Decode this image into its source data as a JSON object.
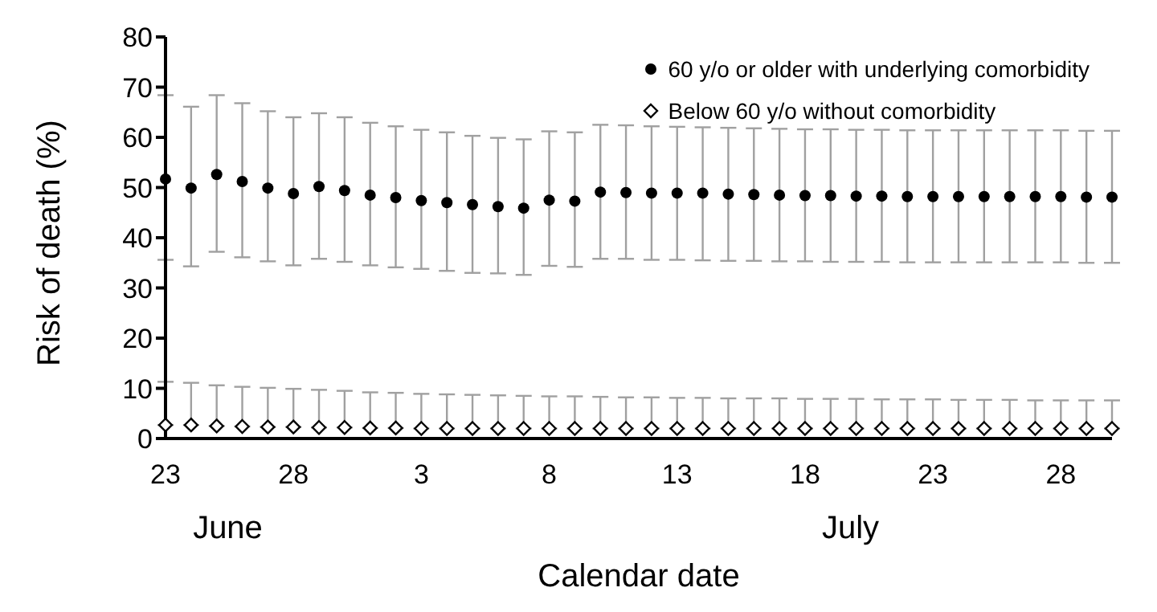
{
  "chart_data": {
    "type": "scatter",
    "xlabel": "Calendar date",
    "ylabel": "Risk of death (%)",
    "categories": [
      "23",
      null,
      null,
      null,
      null,
      "28",
      null,
      null,
      null,
      null,
      "3",
      null,
      null,
      null,
      null,
      "8",
      null,
      null,
      null,
      null,
      "13",
      null,
      null,
      null,
      null,
      "18",
      null,
      null,
      null,
      null,
      "23",
      null,
      null,
      null,
      null,
      "28",
      null,
      null
    ],
    "annotations": [
      "June",
      "July"
    ],
    "ylim": [
      0,
      80
    ],
    "yticks": [
      0,
      10,
      20,
      30,
      40,
      50,
      60,
      70,
      80
    ],
    "grid": false,
    "legend": "top right",
    "series": [
      {
        "name": "60 y/o or older with underlying comorbidity",
        "color": "#000000",
        "marker": "circle",
        "values": [
          51.7,
          49.9,
          52.6,
          51.2,
          49.9,
          48.8,
          50.2,
          49.4,
          48.5,
          48.0,
          47.4,
          47.0,
          46.6,
          46.2,
          45.9,
          47.5,
          47.3,
          49.1,
          49.0,
          48.9,
          48.9,
          48.9,
          48.7,
          48.6,
          48.5,
          48.4,
          48.4,
          48.3,
          48.3,
          48.2,
          48.2,
          48.2,
          48.2,
          48.2,
          48.2,
          48.2,
          48.1,
          48.1
        ],
        "errors": [
          [
            35.6,
            68.4
          ],
          [
            34.3,
            66.1
          ],
          [
            37.2,
            68.4
          ],
          [
            36.1,
            66.8
          ],
          [
            35.3,
            65.2
          ],
          [
            34.5,
            64.0
          ],
          [
            35.8,
            64.8
          ],
          [
            35.2,
            64.0
          ],
          [
            34.5,
            62.9
          ],
          [
            34.1,
            62.2
          ],
          [
            33.8,
            61.5
          ],
          [
            33.4,
            61.0
          ],
          [
            33.0,
            60.3
          ],
          [
            32.9,
            59.9
          ],
          [
            32.6,
            59.6
          ],
          [
            34.4,
            61.2
          ],
          [
            34.2,
            61.0
          ],
          [
            35.8,
            62.5
          ],
          [
            35.8,
            62.4
          ],
          [
            35.6,
            62.2
          ],
          [
            35.6,
            62.1
          ],
          [
            35.5,
            62.0
          ],
          [
            35.4,
            61.9
          ],
          [
            35.4,
            61.8
          ],
          [
            35.3,
            61.7
          ],
          [
            35.3,
            61.6
          ],
          [
            35.2,
            61.6
          ],
          [
            35.2,
            61.5
          ],
          [
            35.2,
            61.5
          ],
          [
            35.1,
            61.4
          ],
          [
            35.1,
            61.4
          ],
          [
            35.1,
            61.4
          ],
          [
            35.1,
            61.4
          ],
          [
            35.1,
            61.4
          ],
          [
            35.1,
            61.4
          ],
          [
            35.1,
            61.4
          ],
          [
            35.0,
            61.3
          ],
          [
            35.0,
            61.3
          ]
        ]
      },
      {
        "name": "Below 60 y/o without comorbidity",
        "color": "#000000",
        "marker": "diamond",
        "values": [
          2.7,
          2.7,
          2.5,
          2.4,
          2.3,
          2.3,
          2.2,
          2.2,
          2.1,
          2.1,
          2.0,
          2.0,
          2.0,
          2.0,
          2.0,
          2.0,
          2.0,
          2.0,
          2.0,
          2.0,
          2.0,
          2.0,
          2.0,
          2.0,
          2.0,
          2.0,
          2.0,
          2.0,
          2.0,
          2.0,
          2.0,
          2.0,
          2.0,
          2.0,
          2.0,
          2.0,
          2.0,
          2.0
        ],
        "errors": [
          [
            2.7,
            11.3
          ],
          [
            2.7,
            11.1
          ],
          [
            2.5,
            10.6
          ],
          [
            2.4,
            10.3
          ],
          [
            2.3,
            10.1
          ],
          [
            2.3,
            9.9
          ],
          [
            2.2,
            9.7
          ],
          [
            2.2,
            9.5
          ],
          [
            2.1,
            9.2
          ],
          [
            2.1,
            9.1
          ],
          [
            2.0,
            8.9
          ],
          [
            2.0,
            8.8
          ],
          [
            2.0,
            8.7
          ],
          [
            2.0,
            8.6
          ],
          [
            2.0,
            8.5
          ],
          [
            2.0,
            8.4
          ],
          [
            2.0,
            8.4
          ],
          [
            2.0,
            8.3
          ],
          [
            2.0,
            8.2
          ],
          [
            2.0,
            8.2
          ],
          [
            2.0,
            8.1
          ],
          [
            2.0,
            8.1
          ],
          [
            2.0,
            8.0
          ],
          [
            2.0,
            8.0
          ],
          [
            2.0,
            8.0
          ],
          [
            2.0,
            7.9
          ],
          [
            2.0,
            7.9
          ],
          [
            2.0,
            7.9
          ],
          [
            2.0,
            7.8
          ],
          [
            2.0,
            7.8
          ],
          [
            2.0,
            7.8
          ],
          [
            2.0,
            7.7
          ],
          [
            2.0,
            7.7
          ],
          [
            2.0,
            7.7
          ],
          [
            2.0,
            7.6
          ],
          [
            2.0,
            7.6
          ],
          [
            2.0,
            7.6
          ],
          [
            2.0,
            7.6
          ]
        ]
      }
    ]
  }
}
